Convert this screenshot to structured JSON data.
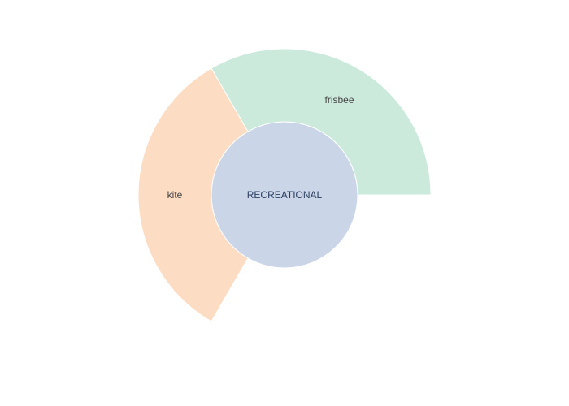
{
  "chart_data": {
    "type": "sunburst",
    "root": {
      "label": "RECREATIONAL",
      "color": "#cbd5e8"
    },
    "children": [
      {
        "label": "frisbee",
        "value": 1,
        "color": "#cbeadc"
      },
      {
        "label": "kite",
        "value": 1,
        "color": "#fcdcc3"
      }
    ],
    "total": 3,
    "stroke_color": "#ffffff"
  }
}
